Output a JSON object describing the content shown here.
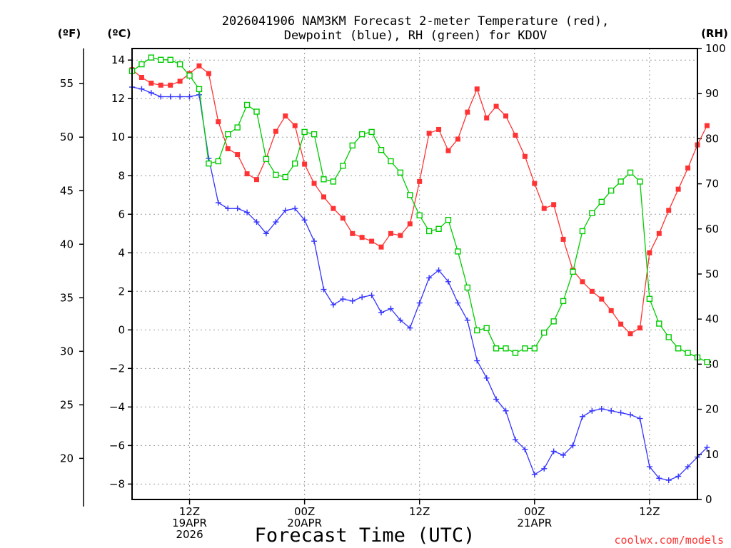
{
  "chart_data": {
    "type": "line",
    "title": [
      "2026041906 NAM3KM Forecast 2-meter Temperature (red),",
      "Dewpoint (blue), RH (green) for KDOV"
    ],
    "xlabel": "Forecast Time (UTC)",
    "credit": "coolwx.com/models",
    "units": {
      "left_f": "(ºF)",
      "left_c": "(ºC)",
      "right": "(RH)"
    },
    "x_range_hours": [
      0,
      59
    ],
    "x_ticks": [
      {
        "hour": 6,
        "lines": [
          "12Z",
          "19APR",
          "2026"
        ]
      },
      {
        "hour": 18,
        "lines": [
          "00Z",
          "20APR"
        ]
      },
      {
        "hour": 30,
        "lines": [
          "12Z"
        ]
      },
      {
        "hour": 42,
        "lines": [
          "00Z",
          "21APR"
        ]
      },
      {
        "hour": 54,
        "lines": [
          "12Z"
        ]
      }
    ],
    "ylim_c": [
      -8.8,
      14.6
    ],
    "y_ticks_c": [
      -8,
      -6,
      -4,
      -2,
      0,
      2,
      4,
      6,
      8,
      10,
      12,
      14
    ],
    "y_ticks_f": [
      20,
      25,
      30,
      35,
      40,
      45,
      50,
      55
    ],
    "ylim_rh": [
      0,
      100
    ],
    "y_ticks_rh": [
      0,
      10,
      20,
      30,
      40,
      50,
      60,
      70,
      80,
      90,
      100
    ],
    "colors": {
      "temperature": "#ff3333",
      "dewpoint": "#3333ff",
      "rh": "#00cc00",
      "grid": "#999999"
    },
    "series": [
      {
        "name": "Temperature (°C)",
        "axis": "c",
        "marker": "square-filled",
        "color": "#ff3333",
        "values": [
          13.5,
          13.1,
          12.8,
          12.7,
          12.7,
          12.9,
          13.3,
          13.7,
          13.3,
          10.8,
          9.4,
          9.1,
          8.1,
          7.8,
          8.9,
          10.3,
          11.1,
          10.6,
          8.6,
          7.6,
          6.9,
          6.3,
          5.8,
          5.0,
          4.8,
          4.6,
          4.3,
          5.0,
          4.9,
          5.5,
          7.7,
          10.2,
          10.4,
          9.3,
          9.9,
          11.3,
          12.5,
          11.0,
          11.6,
          11.1,
          10.1,
          9.0,
          7.6,
          6.3,
          6.5,
          4.7,
          3.1,
          2.5,
          2.0,
          1.6,
          1.0,
          0.3,
          -0.2,
          0.1,
          4.0,
          5.0,
          6.2,
          7.3,
          8.4,
          9.6,
          10.6
        ]
      },
      {
        "name": "Dewpoint (°C)",
        "axis": "c",
        "marker": "plus",
        "color": "#3333ff",
        "values": [
          12.6,
          12.5,
          12.3,
          12.1,
          12.1,
          12.1,
          12.1,
          12.2,
          8.9,
          6.6,
          6.3,
          6.3,
          6.1,
          5.6,
          5.0,
          5.6,
          6.2,
          6.3,
          5.7,
          4.6,
          2.1,
          1.3,
          1.6,
          1.5,
          1.7,
          1.8,
          0.9,
          1.1,
          0.5,
          0.1,
          1.4,
          2.7,
          3.1,
          2.5,
          1.4,
          0.5,
          -1.6,
          -2.5,
          -3.6,
          -4.2,
          -5.7,
          -6.2,
          -7.5,
          -7.2,
          -6.3,
          -6.5,
          -6.0,
          -4.5,
          -4.2,
          -4.1,
          -4.2,
          -4.3,
          -4.4,
          -4.6,
          -7.1,
          -7.7,
          -7.8,
          -7.6,
          -7.1,
          -6.6,
          -6.1
        ]
      },
      {
        "name": "Relative Humidity (%)",
        "axis": "rh",
        "marker": "square-open",
        "color": "#00cc00",
        "values": [
          95,
          96.5,
          98,
          97.5,
          97.5,
          96.5,
          94,
          91,
          74.5,
          75,
          81,
          82.5,
          87.5,
          86,
          75.5,
          72,
          71.5,
          74.5,
          81.5,
          81,
          71,
          70.5,
          74,
          78.5,
          81,
          81.5,
          77.5,
          75,
          72.5,
          67.5,
          63,
          59.5,
          60,
          62,
          55,
          47,
          37.5,
          38,
          33.5,
          33.5,
          32.5,
          33.5,
          33.5,
          37,
          39.5,
          44,
          50.5,
          59.5,
          63.5,
          66,
          68.5,
          70.5,
          72.5,
          70.5,
          44.5,
          39,
          36,
          33.5,
          32.5,
          31.5,
          30.5
        ]
      }
    ]
  }
}
